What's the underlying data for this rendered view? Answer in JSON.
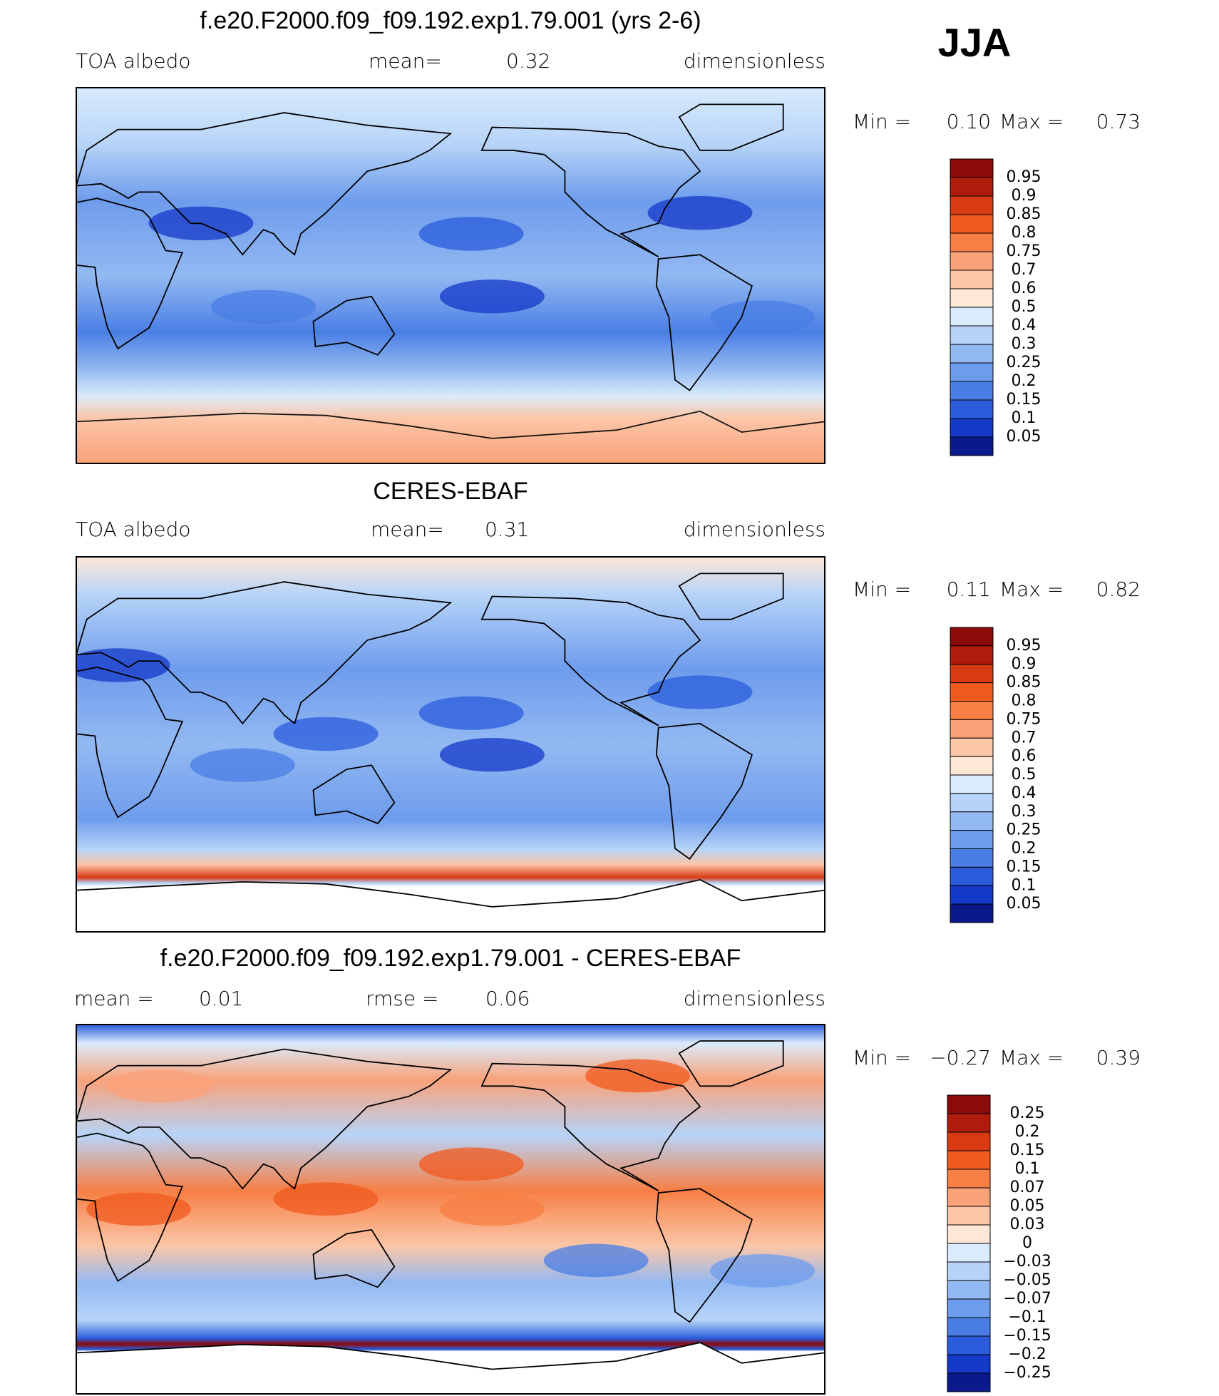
{
  "season": "JJA",
  "panels": [
    {
      "title": "f.e20.F2000.f09_f09.192.exp1.79.001 (yrs 2-6)",
      "field_label": "TOA albedo",
      "stats": [
        {
          "label": "mean=",
          "value": "0.32"
        }
      ],
      "units": "dimensionless",
      "min_label": "Min =",
      "min": "0.10",
      "max_label": "Max =",
      "max": "0.73",
      "colorbar": [
        "0.95",
        "0.9",
        "0.85",
        "0.8",
        "0.75",
        "0.7",
        "0.6",
        "0.5",
        "0.4",
        "0.3",
        "0.25",
        "0.2",
        "0.15",
        "0.1",
        "0.05"
      ]
    },
    {
      "title": "CERES-EBAF",
      "field_label": "TOA albedo",
      "stats": [
        {
          "label": "mean=",
          "value": "0.31"
        }
      ],
      "units": "dimensionless",
      "min_label": "Min =",
      "min": "0.11",
      "max_label": "Max =",
      "max": "0.82",
      "colorbar": [
        "0.95",
        "0.9",
        "0.85",
        "0.8",
        "0.75",
        "0.7",
        "0.6",
        "0.5",
        "0.4",
        "0.3",
        "0.25",
        "0.2",
        "0.15",
        "0.1",
        "0.05"
      ]
    },
    {
      "title": "f.e20.F2000.f09_f09.192.exp1.79.001 - CERES-EBAF",
      "stats": [
        {
          "label": "mean =",
          "value": "0.01"
        },
        {
          "label": "rmse =",
          "value": "0.06"
        }
      ],
      "units": "dimensionless",
      "min_label": "Min =",
      "min": "−0.27",
      "max_label": "Max =",
      "max": "0.39",
      "colorbar": [
        "0.25",
        "0.2",
        "0.15",
        "0.1",
        "0.07",
        "0.05",
        "0.03",
        "0",
        "−0.03",
        "−0.05",
        "−0.07",
        "−0.1",
        "−0.15",
        "−0.2",
        "−0.25"
      ]
    }
  ]
}
